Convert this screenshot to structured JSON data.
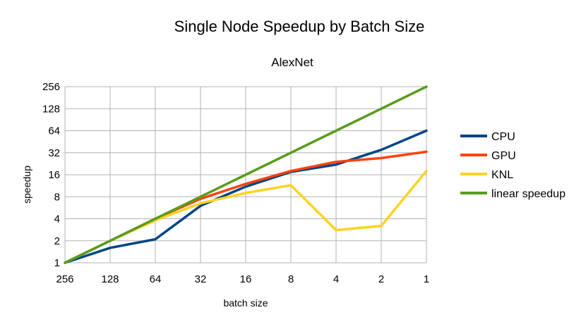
{
  "chart_data": {
    "type": "line",
    "title": "Single Node Speedup by Batch Size",
    "subtitle": "AlexNet",
    "xlabel": "batch size",
    "ylabel": "speedup",
    "y_scale": "log2",
    "ylim": [
      1,
      256
    ],
    "y_ticks": [
      "1",
      "2",
      "4",
      "8",
      "16",
      "32",
      "64",
      "128",
      "256"
    ],
    "categories": [
      "256",
      "128",
      "64",
      "32",
      "16",
      "8",
      "4",
      "2",
      "1"
    ],
    "grid": true,
    "legend_position": "right",
    "series": [
      {
        "name": "CPU",
        "color": "#004586",
        "values": [
          1,
          1.6,
          2.1,
          6,
          11,
          17.5,
          22,
          35,
          64
        ]
      },
      {
        "name": "GPU",
        "color": "#ff420e",
        "values": [
          1,
          2,
          4,
          7.5,
          12,
          18,
          24,
          27,
          33
        ]
      },
      {
        "name": "KNL",
        "color": "#ffd320",
        "values": [
          1,
          2,
          3.8,
          6.5,
          9,
          11.5,
          2.8,
          3.2,
          18
        ]
      },
      {
        "name": "linear speedup",
        "color": "#579d1c",
        "values": [
          1,
          2,
          4,
          8,
          16,
          32,
          64,
          128,
          256
        ]
      }
    ]
  }
}
